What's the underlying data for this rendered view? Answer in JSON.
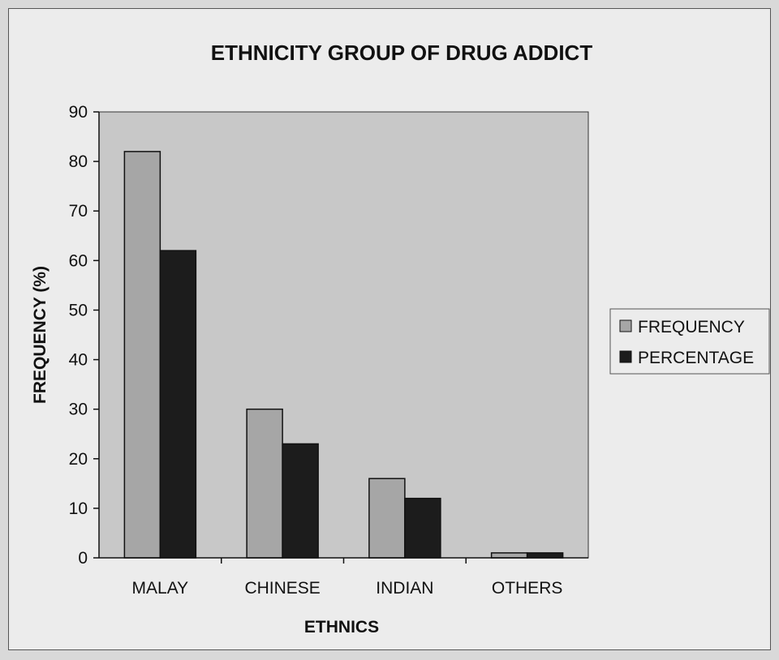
{
  "chart_data": {
    "type": "bar",
    "title": "ETHNICITY GROUP OF DRUG ADDICT",
    "xlabel": "ETHNICS",
    "ylabel": "FREQUENCY (%)",
    "categories": [
      "MALAY",
      "CHINESE",
      "INDIAN",
      "OTHERS"
    ],
    "series": [
      {
        "name": "FREQUENCY",
        "values": [
          82,
          30,
          16,
          1
        ],
        "color": "#a6a6a6"
      },
      {
        "name": "PERCENTAGE",
        "values": [
          62,
          23,
          12,
          1
        ],
        "color": "#1c1c1c"
      }
    ],
    "ylim": [
      0,
      90
    ],
    "yticks": [
      "0",
      "10",
      "20",
      "30",
      "40",
      "50",
      "60",
      "70",
      "80",
      "90"
    ],
    "grid": false,
    "legend_position": "right",
    "plot_background": "#c8c8c8"
  }
}
